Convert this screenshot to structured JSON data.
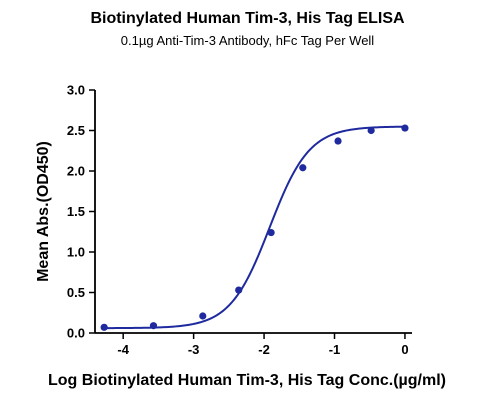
{
  "chart_data": {
    "type": "scatter",
    "title": "Biotinylated Human Tim-3, His Tag ELISA",
    "subtitle": "0.1µg Anti-Tim-3 Antibody, hFc Tag Per Well",
    "xlabel": "Log Biotinylated Human Tim-3, His Tag Conc.(µg/ml)",
    "ylabel": "Mean Abs.(OD450)",
    "xlim": [
      -4.4,
      0.1
    ],
    "ylim": [
      0,
      3.0
    ],
    "xticks": [
      -4,
      -3,
      -2,
      -1,
      0
    ],
    "yticks": [
      0.0,
      0.5,
      1.0,
      1.5,
      2.0,
      2.5,
      3.0
    ],
    "ytick_labels": [
      "0.0",
      "0.5",
      "1.0",
      "1.5",
      "2.0",
      "2.5",
      "3.0"
    ],
    "grid": false,
    "fit": "sigmoidal 4PL curve",
    "color": "#1f2a9e",
    "series": [
      {
        "x": [
          -4.27,
          -3.57,
          -2.87,
          -2.36,
          -1.9,
          -1.45,
          -0.95,
          -0.48,
          0.0
        ],
        "y": [
          0.07,
          0.09,
          0.21,
          0.53,
          1.24,
          2.04,
          2.37,
          2.5,
          2.53
        ]
      }
    ]
  }
}
